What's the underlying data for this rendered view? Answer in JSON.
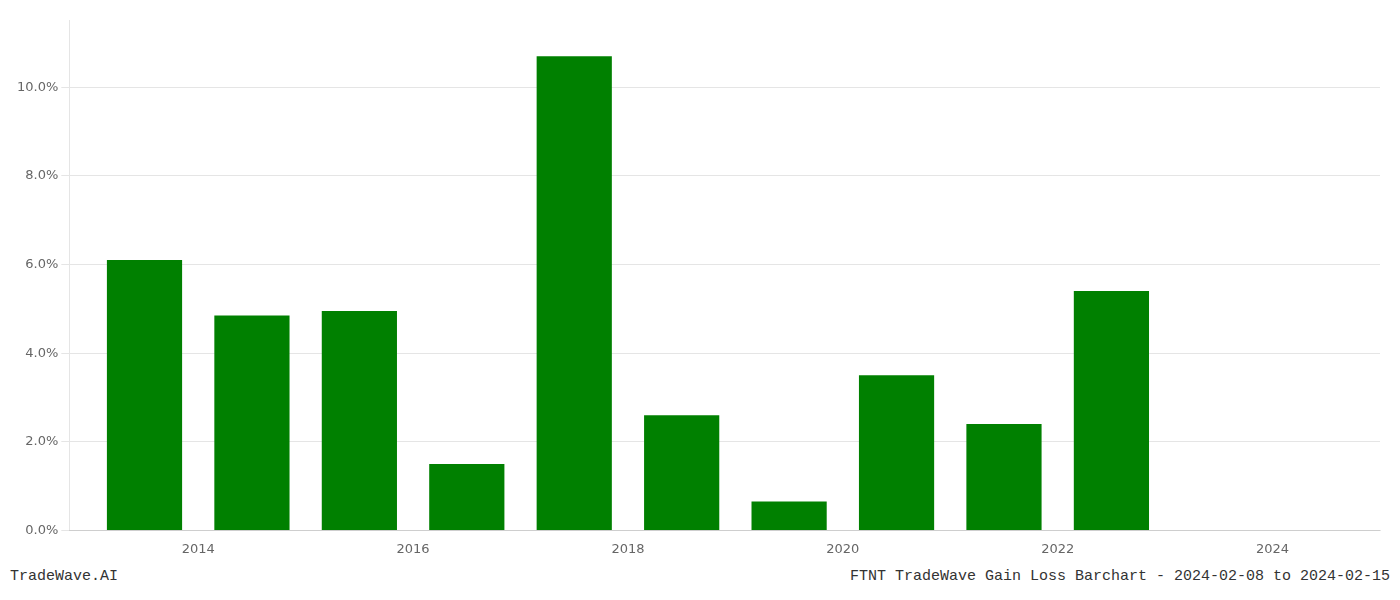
{
  "chart_data": {
    "type": "bar",
    "x": [
      2013.5,
      2014.5,
      2015.5,
      2016.5,
      2017.5,
      2018.5,
      2019.5,
      2020.5,
      2021.5,
      2022.5,
      2023.5
    ],
    "values": [
      0.061,
      0.0485,
      0.0495,
      0.015,
      0.107,
      0.026,
      0.0065,
      0.035,
      0.024,
      0.054,
      0.0
    ],
    "color": "#008000",
    "xlim": [
      2012.8,
      2025.0
    ],
    "xticks": [
      2014,
      2016,
      2018,
      2020,
      2022,
      2024
    ],
    "ylim": [
      0,
      0.115
    ],
    "yticks": [
      {
        "value": 0.0,
        "label": "0.0%"
      },
      {
        "value": 0.02,
        "label": "2.0%"
      },
      {
        "value": 0.04,
        "label": "4.0%"
      },
      {
        "value": 0.06,
        "label": "6.0%"
      },
      {
        "value": 0.08,
        "label": "8.0%"
      },
      {
        "value": 0.1,
        "label": "10.0%"
      }
    ],
    "grid": true,
    "annotations": [
      "TradeWave.AI",
      "FTNT TradeWave Gain Loss Barchart - 2024-02-08 to 2024-02-15"
    ]
  }
}
